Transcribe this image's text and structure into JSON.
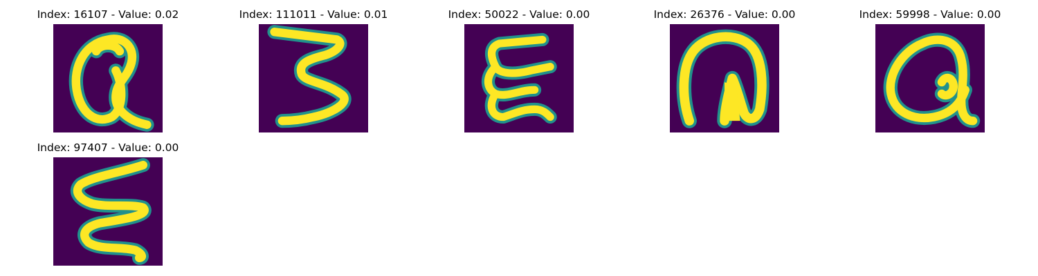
{
  "background_color": "#440154",
  "stroke_color": "#fde725",
  "edge_color": "#21918c",
  "panels": [
    {
      "index": "16107",
      "value": "0.02",
      "title": "Index: 16107 - Value: 0.02",
      "glyph": "handwritten-q-icon"
    },
    {
      "index": "111011",
      "value": "0.01",
      "title": "Index: 111011 - Value: 0.01",
      "glyph": "handwritten-3-icon"
    },
    {
      "index": "50022",
      "value": "0.00",
      "title": "Index: 50022 - Value: 0.00",
      "glyph": "handwritten-e-icon"
    },
    {
      "index": "26376",
      "value": "0.00",
      "title": "Index: 26376 - Value: 0.00",
      "glyph": "handwritten-n-icon"
    },
    {
      "index": "59998",
      "value": "0.00",
      "title": "Index: 59998 - Value: 0.00",
      "glyph": "handwritten-q-icon"
    },
    {
      "index": "97407",
      "value": "0.00",
      "title": "Index: 97407 - Value: 0.00",
      "glyph": "handwritten-e-icon"
    }
  ]
}
